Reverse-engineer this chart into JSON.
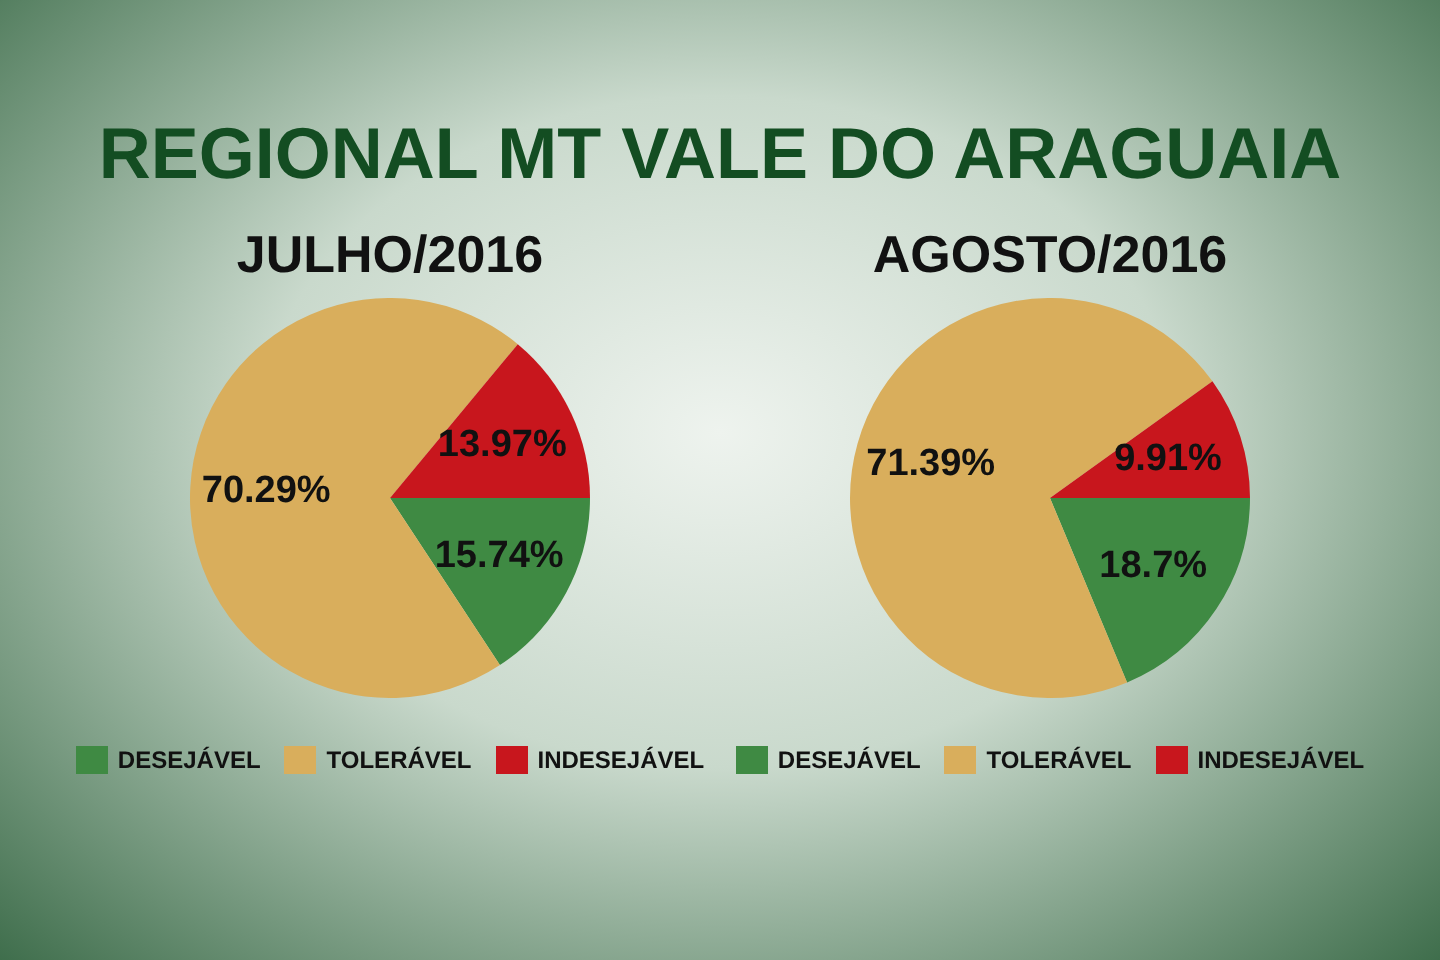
{
  "chart_data": [
    {
      "type": "other",
      "title": "REGIONAL MT VALE DO ARAGUAIA"
    },
    {
      "type": "pie",
      "title": "JULHO/2016",
      "categories": [
        "DESEJÁVEL",
        "TOLERÁVEL",
        "INDESEJÁVEL"
      ],
      "values": [
        15.74,
        70.29,
        13.97
      ],
      "colors": [
        "#3f8a43",
        "#d9ae5c",
        "#c8161d"
      ],
      "value_labels": [
        "15.74%",
        "70.29%",
        "13.97%"
      ],
      "legend": "bottom"
    },
    {
      "type": "pie",
      "title": "AGOSTO/2016",
      "categories": [
        "DESEJÁVEL",
        "TOLERÁVEL",
        "INDESEJÁVEL"
      ],
      "values": [
        18.7,
        71.39,
        9.91
      ],
      "colors": [
        "#3f8a43",
        "#d9ae5c",
        "#c8161d"
      ],
      "value_labels": [
        "18.7%",
        "71.39%",
        "9.91%"
      ],
      "legend": "bottom"
    }
  ]
}
